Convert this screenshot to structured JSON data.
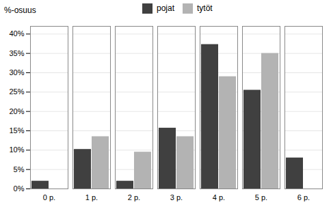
{
  "chart_data": {
    "type": "bar",
    "ylabel": "%-osuus",
    "categories": [
      "0 p.",
      "1 p.",
      "2 p.",
      "3 p.",
      "4 p.",
      "5 p.",
      "6 p."
    ],
    "series": [
      {
        "name": "pojat",
        "color": "#404040",
        "values": [
          2.0,
          10.2,
          2.0,
          15.7,
          37.3,
          25.5,
          8.0
        ]
      },
      {
        "name": "tytöt",
        "color": "#b3b3b3",
        "values": [
          0.0,
          13.5,
          9.5,
          13.5,
          29.0,
          35.0,
          0.0
        ]
      }
    ],
    "ylim": [
      0,
      42
    ],
    "yticks": [
      {
        "value": 0,
        "label": "0%"
      },
      {
        "value": 5,
        "label": "5%"
      },
      {
        "value": 10,
        "label": "10%"
      },
      {
        "value": 15,
        "label": "15%"
      },
      {
        "value": 20,
        "label": "20%"
      },
      {
        "value": 25,
        "label": "25%"
      },
      {
        "value": 30,
        "label": "30%"
      },
      {
        "value": 35,
        "label": "35%"
      },
      {
        "value": 40,
        "label": "40%"
      }
    ],
    "grid": true,
    "legend": "top"
  }
}
